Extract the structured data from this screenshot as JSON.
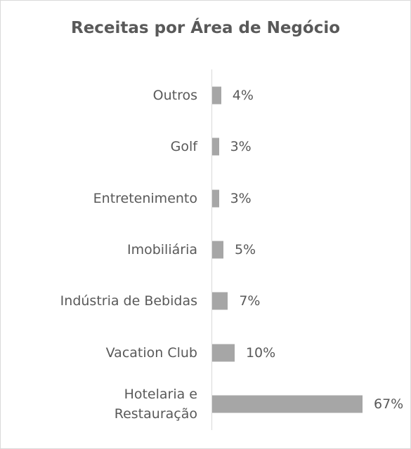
{
  "chart_data": {
    "type": "bar",
    "orientation": "horizontal",
    "title": "Receitas por Área de Negócio",
    "categories": [
      "Outros",
      "Golf",
      "Entretenimento",
      "Imobiliária",
      "Indústria de Bebidas",
      "Vacation Club",
      "Hotelaria e\nRestauração"
    ],
    "values": [
      4,
      3,
      3,
      5,
      7,
      10,
      67
    ],
    "value_labels": [
      "4%",
      "3%",
      "3%",
      "5%",
      "7%",
      "10%",
      "67%"
    ],
    "color": "#a6a6a6"
  }
}
